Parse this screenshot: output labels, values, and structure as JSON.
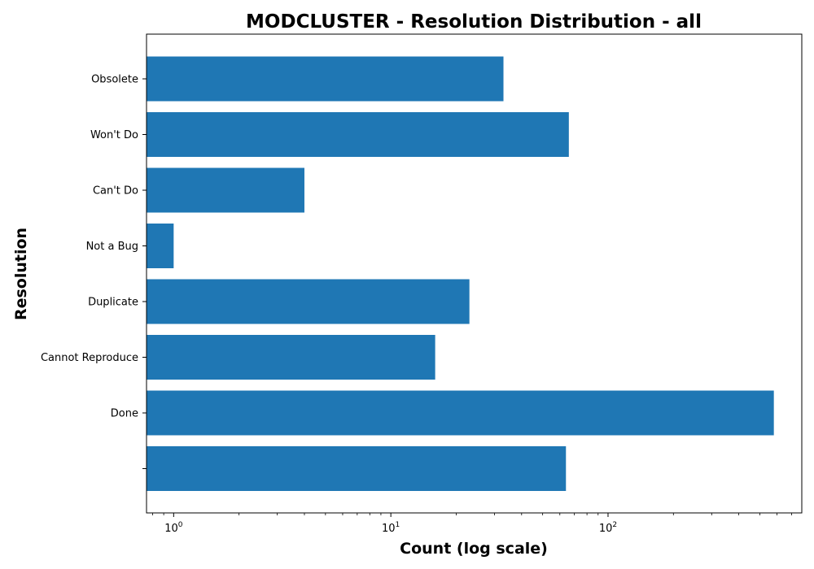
{
  "chart_data": {
    "type": "bar",
    "orientation": "horizontal",
    "title": "MODCLUSTER - Resolution Distribution - all",
    "xlabel": "Count (log scale)",
    "ylabel": "Resolution",
    "x_scale": "log",
    "xlim": [
      0.75,
      780
    ],
    "x_ticks": [
      {
        "value": 1,
        "base": "10",
        "exp": "0"
      },
      {
        "value": 10,
        "base": "10",
        "exp": "1"
      },
      {
        "value": 100,
        "base": "10",
        "exp": "2"
      }
    ],
    "categories": [
      "",
      "Done",
      "Cannot Reproduce",
      "Duplicate",
      "Not a Bug",
      "Can't Do",
      "Won't Do",
      "Obsolete"
    ],
    "values": [
      64,
      580,
      16,
      23,
      1,
      4,
      66,
      33
    ],
    "bar_color": "#1f77b4",
    "grid": false,
    "legend": "none"
  }
}
